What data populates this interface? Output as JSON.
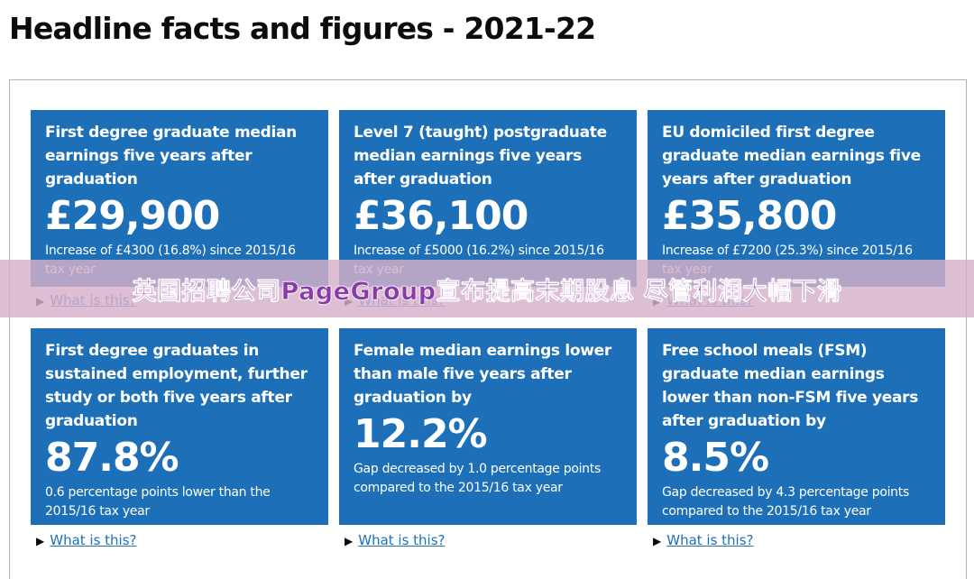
{
  "header": {
    "title": "Headline facts and figures - 2021-22"
  },
  "banner": {
    "text": "英国招聘公司PageGroup宣布提高末期股息 尽管利润大幅下滑"
  },
  "cards": [
    {
      "heading": "First degree graduate median earnings five years after graduation",
      "figure": "£29,900",
      "description": "Increase of £4300 (16.8%) since 2015/16 tax year",
      "link": "What is this?"
    },
    {
      "heading": "Level 7 (taught) postgraduate median earnings five years after graduation",
      "figure": "£36,100",
      "description": "Increase of £5000 (16.2%) since 2015/16 tax year",
      "link": "What is this?"
    },
    {
      "heading": "EU domiciled first degree graduate median earnings five years after graduation",
      "figure": "£35,800",
      "description": "Increase of £7200 (25.3%) since 2015/16 tax year",
      "link": "What is this?"
    },
    {
      "heading": "First degree graduates in sustained employment, further study or both five years after graduation",
      "figure": "87.8%",
      "description": "0.6 percentage points lower than the 2015/16 tax year",
      "link": "What is this?"
    },
    {
      "heading": "Female median earnings lower than male five years after graduation by",
      "figure": "12.2%",
      "description": "Gap decreased by 1.0 percentage points compared to the 2015/16 tax year",
      "link": "What is this?"
    },
    {
      "heading": "Free school meals (FSM) graduate median earnings lower than non-FSM five years after graduation by",
      "figure": "8.5%",
      "description": "Gap decreased by 4.3 percentage points compared to the 2015/16 tax year",
      "link": "What is this?"
    }
  ]
}
